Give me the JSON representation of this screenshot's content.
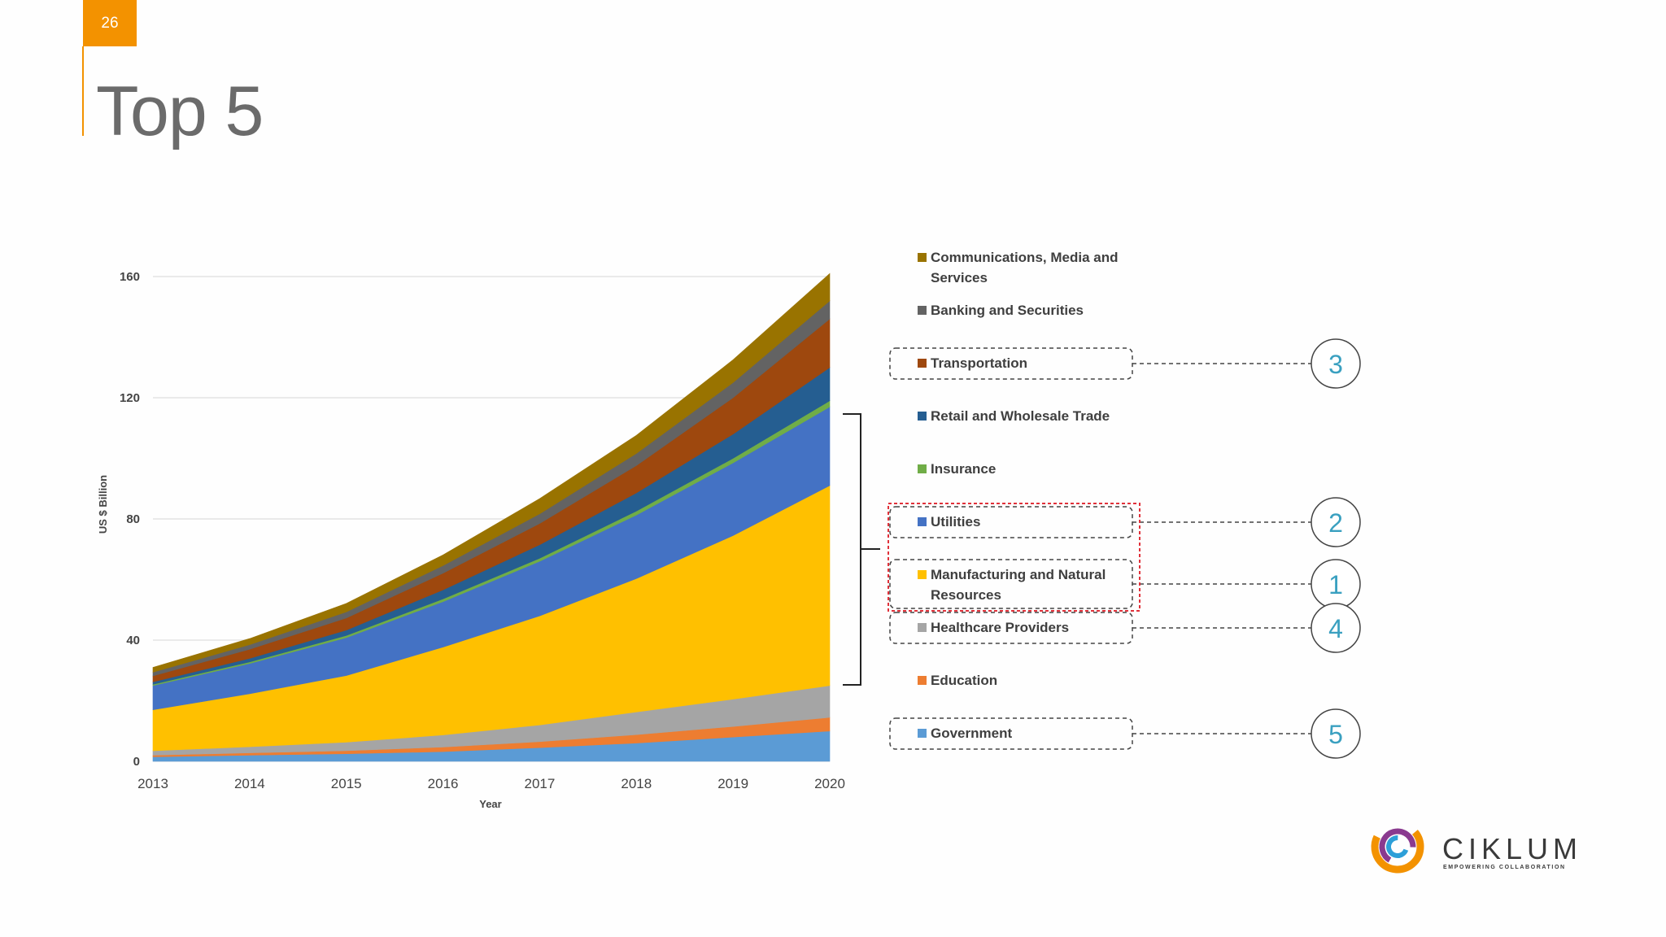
{
  "slide": {
    "number": "26",
    "title": "Top 5"
  },
  "colors": {
    "accent": "#f39200",
    "grid": "#e3e3e3",
    "callout": "#3aa0c0",
    "highlight": "#e0313a"
  },
  "chart_data": {
    "type": "area",
    "stacked": true,
    "title": "",
    "xlabel": "Year",
    "ylabel": "US $ Billion",
    "x": [
      2013,
      2014,
      2015,
      2016,
      2017,
      2018,
      2019,
      2020
    ],
    "x_ticks": [
      "2013",
      "2014",
      "2015",
      "2016",
      "2017",
      "2018",
      "2019",
      "2020"
    ],
    "y_ticks": [
      "0",
      "40",
      "80",
      "120",
      "160"
    ],
    "ylim": [
      0,
      170
    ],
    "grid": true,
    "series": [
      {
        "name": "Government",
        "color": "#5b9bd5",
        "values": [
          1.5,
          2.0,
          2.5,
          3.2,
          4.5,
          6.0,
          8.0,
          10.0
        ]
      },
      {
        "name": "Education",
        "color": "#ed7d31",
        "values": [
          0.5,
          0.8,
          1.0,
          1.5,
          2.0,
          2.8,
          3.5,
          4.5
        ]
      },
      {
        "name": "Healthcare Providers",
        "color": "#a5a5a5",
        "values": [
          1.5,
          2.0,
          2.8,
          4.0,
          5.5,
          7.5,
          9.0,
          10.5
        ]
      },
      {
        "name": "Manufacturing and Natural Resources",
        "color": "#ffc000",
        "values": [
          13.5,
          17.5,
          22.0,
          29.0,
          36.0,
          44.0,
          54.0,
          66.0
        ]
      },
      {
        "name": "Utilities",
        "color": "#4472c4",
        "values": [
          8.0,
          10.0,
          12.5,
          15.0,
          18.0,
          21.0,
          24.0,
          26.0
        ]
      },
      {
        "name": "Insurance",
        "color": "#70ad47",
        "values": [
          0.4,
          0.5,
          0.7,
          0.9,
          1.0,
          1.3,
          1.5,
          2.0
        ]
      },
      {
        "name": "Retail and Wholesale Trade",
        "color": "#255e91",
        "values": [
          0.8,
          1.2,
          1.8,
          3.0,
          4.5,
          6.0,
          8.0,
          11.0
        ]
      },
      {
        "name": "Transportation",
        "color": "#9e480e",
        "values": [
          2.0,
          3.0,
          4.0,
          5.5,
          7.0,
          9.0,
          12.0,
          16.0
        ]
      },
      {
        "name": "Banking and Securities",
        "color": "#636363",
        "values": [
          1.2,
          1.5,
          2.0,
          2.5,
          3.2,
          4.0,
          5.0,
          6.0
        ]
      },
      {
        "name": "Communications, Media and Services",
        "color": "#997300",
        "values": [
          1.6,
          2.0,
          2.8,
          3.5,
          5.0,
          6.0,
          7.5,
          9.0
        ]
      }
    ],
    "legend": [
      {
        "label_lines": [
          "Communications, Media and",
          "Services"
        ],
        "color": "#997300",
        "boxed": false,
        "rank": null
      },
      {
        "label_lines": [
          "Banking and Securities"
        ],
        "color": "#636363",
        "boxed": false,
        "rank": null
      },
      {
        "label_lines": [
          "Transportation"
        ],
        "color": "#9e480e",
        "boxed": true,
        "rank": "3"
      },
      {
        "label_lines": [
          "Retail and Wholesale Trade"
        ],
        "color": "#255e91",
        "boxed": false,
        "rank": null
      },
      {
        "label_lines": [
          "Insurance"
        ],
        "color": "#70ad47",
        "boxed": false,
        "rank": null
      },
      {
        "label_lines": [
          "Utilities"
        ],
        "color": "#4472c4",
        "boxed": true,
        "rank": "2"
      },
      {
        "label_lines": [
          "Manufacturing and Natural",
          "Resources"
        ],
        "color": "#ffc000",
        "boxed": true,
        "rank": "1"
      },
      {
        "label_lines": [
          "Healthcare Providers"
        ],
        "color": "#a5a5a5",
        "boxed": true,
        "rank": "4"
      },
      {
        "label_lines": [
          "Education"
        ],
        "color": "#ed7d31",
        "boxed": false,
        "rank": null
      },
      {
        "label_lines": [
          "Government"
        ],
        "color": "#5b9bd5",
        "boxed": true,
        "rank": "5"
      }
    ]
  },
  "logo": {
    "name": "CIKLUM",
    "tagline": "EMPOWERING COLLABORATION"
  }
}
